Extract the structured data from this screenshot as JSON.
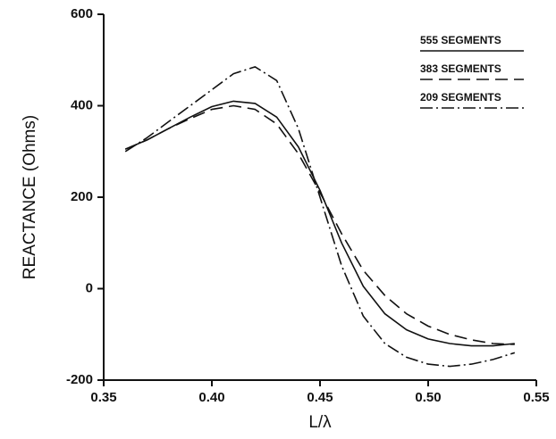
{
  "chart_data": {
    "type": "line",
    "x_label": "L/λ",
    "y_label": "REACTANCE (Ohms)",
    "x": [
      0.36,
      0.37,
      0.38,
      0.39,
      0.4,
      0.41,
      0.42,
      0.43,
      0.44,
      0.45,
      0.46,
      0.47,
      0.48,
      0.49,
      0.5,
      0.51,
      0.52,
      0.53,
      0.54
    ],
    "series": [
      {
        "name": "555 SEGMENTS",
        "color": "#111111",
        "dash": "none",
        "values": [
          305,
          325,
          350,
          375,
          398,
          410,
          405,
          375,
          310,
          215,
          100,
          5,
          -55,
          -90,
          -110,
          -120,
          -125,
          -125,
          -120
        ]
      },
      {
        "name": "383 SEGMENTS",
        "color": "#111111",
        "dash": "14 7",
        "values": [
          305,
          325,
          350,
          372,
          392,
          400,
          392,
          360,
          295,
          210,
          120,
          40,
          -15,
          -55,
          -82,
          -100,
          -112,
          -120,
          -122
        ]
      },
      {
        "name": "209 SEGMENTS",
        "color": "#111111",
        "dash": "14 4 2 4",
        "values": [
          300,
          330,
          365,
          400,
          435,
          470,
          485,
          455,
          350,
          200,
          50,
          -60,
          -120,
          -150,
          -165,
          -170,
          -165,
          -155,
          -140
        ]
      }
    ],
    "xlim": [
      0.35,
      0.55
    ],
    "xticks": [
      0.35,
      {
        "value": 0.4,
        "label": "0.40"
      },
      0.45,
      {
        "value": 0.5,
        "label": "0.50"
      },
      0.55
    ],
    "ylim": [
      -200,
      600
    ],
    "yticks": [
      -200,
      0,
      200,
      400,
      600
    ],
    "grid": false,
    "legend": "upper right"
  }
}
